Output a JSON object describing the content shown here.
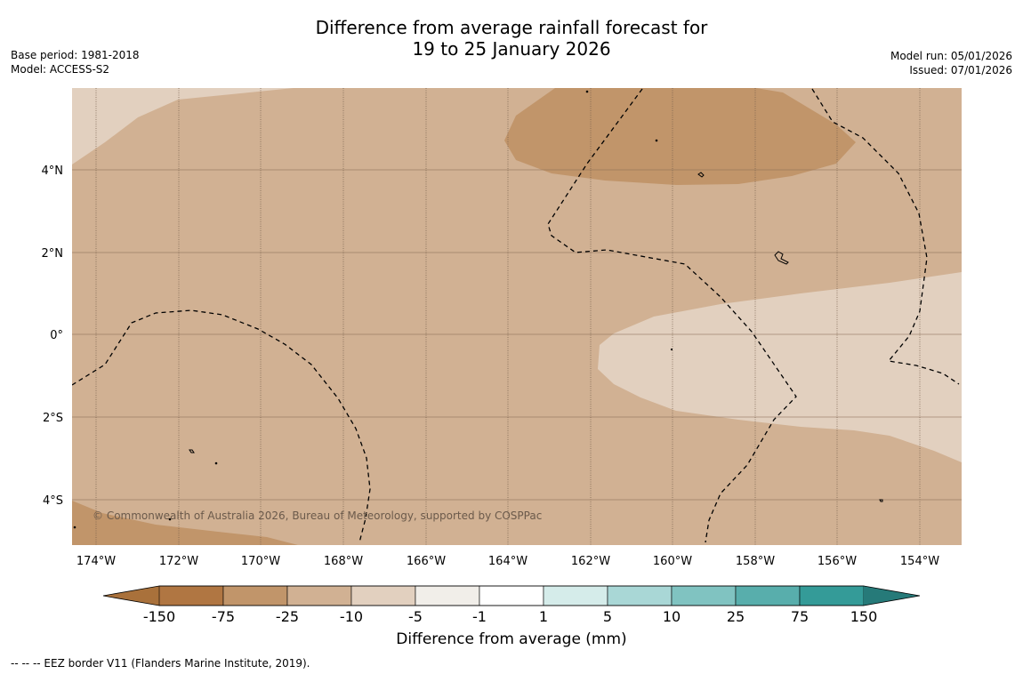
{
  "title": {
    "line1": "Difference from average rainfall forecast for",
    "line2": "19 to 25 January 2026"
  },
  "meta_left": {
    "base_period": "Base period: 1981-2018",
    "model": "Model: ACCESS-S2"
  },
  "meta_right": {
    "model_run": "Model run: 05/01/2026",
    "issued": "Issued: 07/01/2026"
  },
  "map": {
    "copyright": "© Commonwealth of Australia 2026, Bureau of Meteorology, supported by COSPPac",
    "lon_labels": [
      "174°W",
      "172°W",
      "170°W",
      "168°W",
      "166°W",
      "164°W",
      "162°W",
      "160°W",
      "158°W",
      "156°W",
      "154°W"
    ],
    "lat_labels": [
      "4°N",
      "2°N",
      "0°",
      "2°S",
      "4°S"
    ],
    "colors": {
      "light": "#e2d0bf",
      "medium": "#d1b193",
      "dark": "#c1956a"
    }
  },
  "colorbar": {
    "unit_label": "Difference from average (mm)",
    "tick_labels": [
      "-150",
      "-75",
      "-25",
      "-10",
      "-5",
      "-1",
      "1",
      "5",
      "10",
      "25",
      "75",
      "150"
    ],
    "colors": [
      "#a9713b",
      "#b07642",
      "#c1956a",
      "#d1b193",
      "#e2d0bf",
      "#f1eee9",
      "#ffffff",
      "#d5ecea",
      "#a9d7d6",
      "#80c3c1",
      "#58aeac",
      "#349b98",
      "#267a79"
    ]
  },
  "footer": {
    "eez_note": "--  --  -- EEZ border V11 (Flanders Marine Institute, 2019)."
  }
}
